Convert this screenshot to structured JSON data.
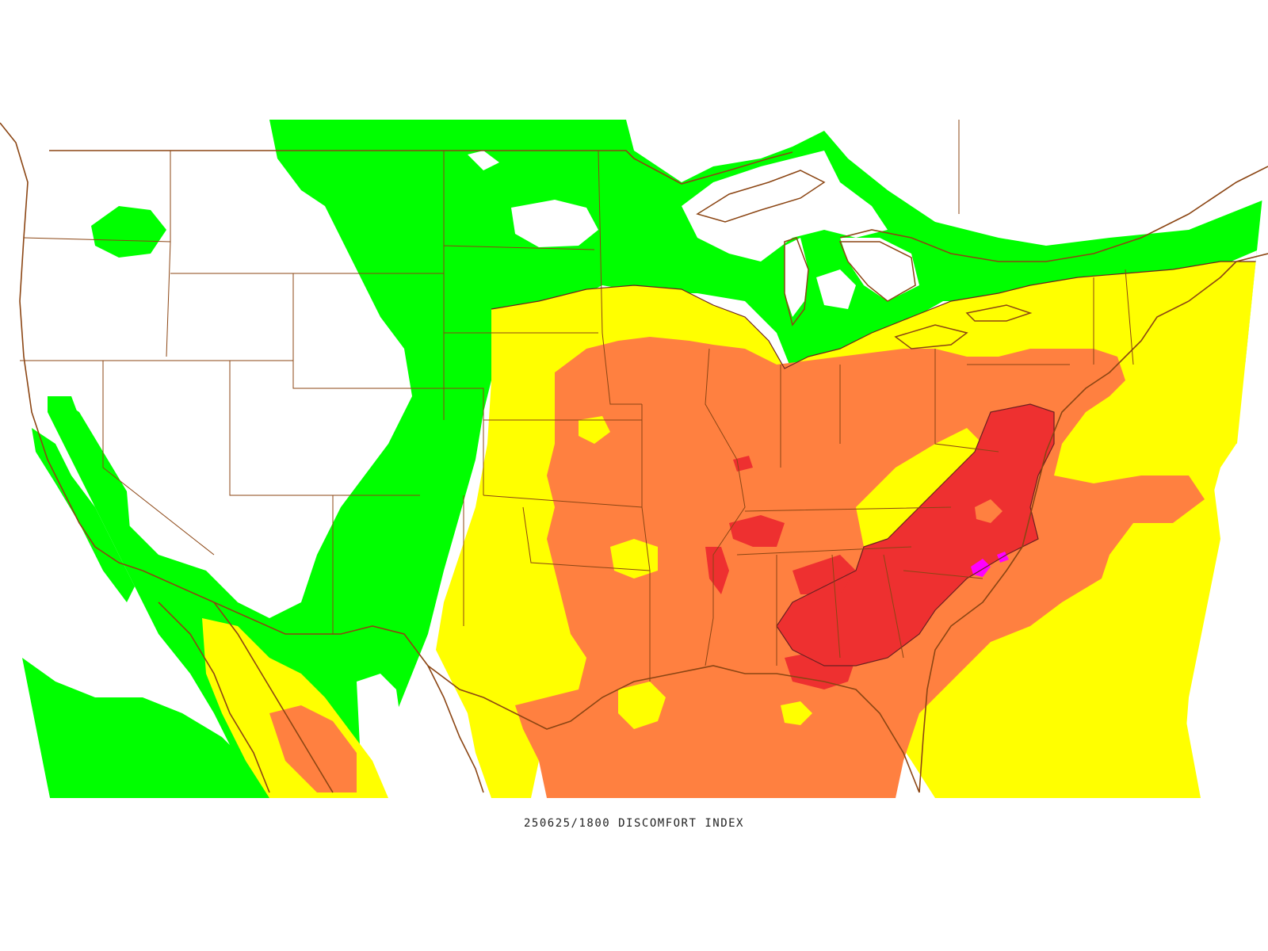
{
  "caption": "250625/1800 DISCOMFORT INDEX",
  "colors": {
    "background": "#ffffff",
    "band_green": "#00ff00",
    "band_yellow": "#ffff00",
    "band_orange": "#ff8040",
    "band_red": "#ee3030",
    "band_magenta": "#ff00ff",
    "boundary": "#8b4513",
    "contour_line": "#6b2020"
  },
  "bands": [
    "green",
    "yellow",
    "orange",
    "red",
    "magenta"
  ]
}
